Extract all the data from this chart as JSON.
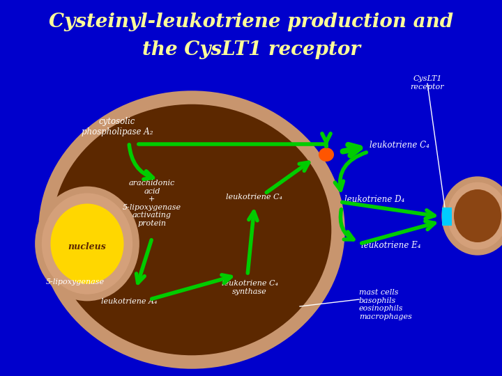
{
  "title_line1": "Cysteinyl-leukotriene production and",
  "title_line2": "the CysLT1 receptor",
  "bg_color": "#0000CC",
  "title_color": "#FFFF99",
  "cell_outer_color": "#C8956E",
  "cell_inner_color": "#5C2800",
  "nucleus_outer_color": "#C8956E",
  "nucleus_mid_color": "#D4A07A",
  "nucleus_inner_color": "#FFD700",
  "arrow_color": "#00CC00",
  "text_color": "#FFFFFF",
  "label_cytosolic": "cytosolic\nphospholipase A₂",
  "label_arachidonic": "arachidonic\nacid\n+\n5-lipoxygenase\nactivating\nprotein",
  "label_nucleus": "nucleus",
  "label_5lipo": "5-lipoxygenase",
  "label_lta4": "leukotriene A₄",
  "label_ltc4_synth": "leukotriene C₄\nsynthase",
  "label_ltc4_mid": "leukotriene C₄",
  "label_ltc4_top": "leukotriene C₄",
  "label_ltd4": "leukotriene D₄",
  "label_lte4": "leukotriene E₄",
  "label_cyslt1_receptor": "CysLT1\nreceptor",
  "label_mast": "mast cells\nbasophils\neosinophils\nmacrophages",
  "receptor_color": "#00CCFF",
  "orange_dot_color": "#FF5500",
  "small_cell_outer": "#C8956E",
  "small_cell_inner": "#8B4513"
}
